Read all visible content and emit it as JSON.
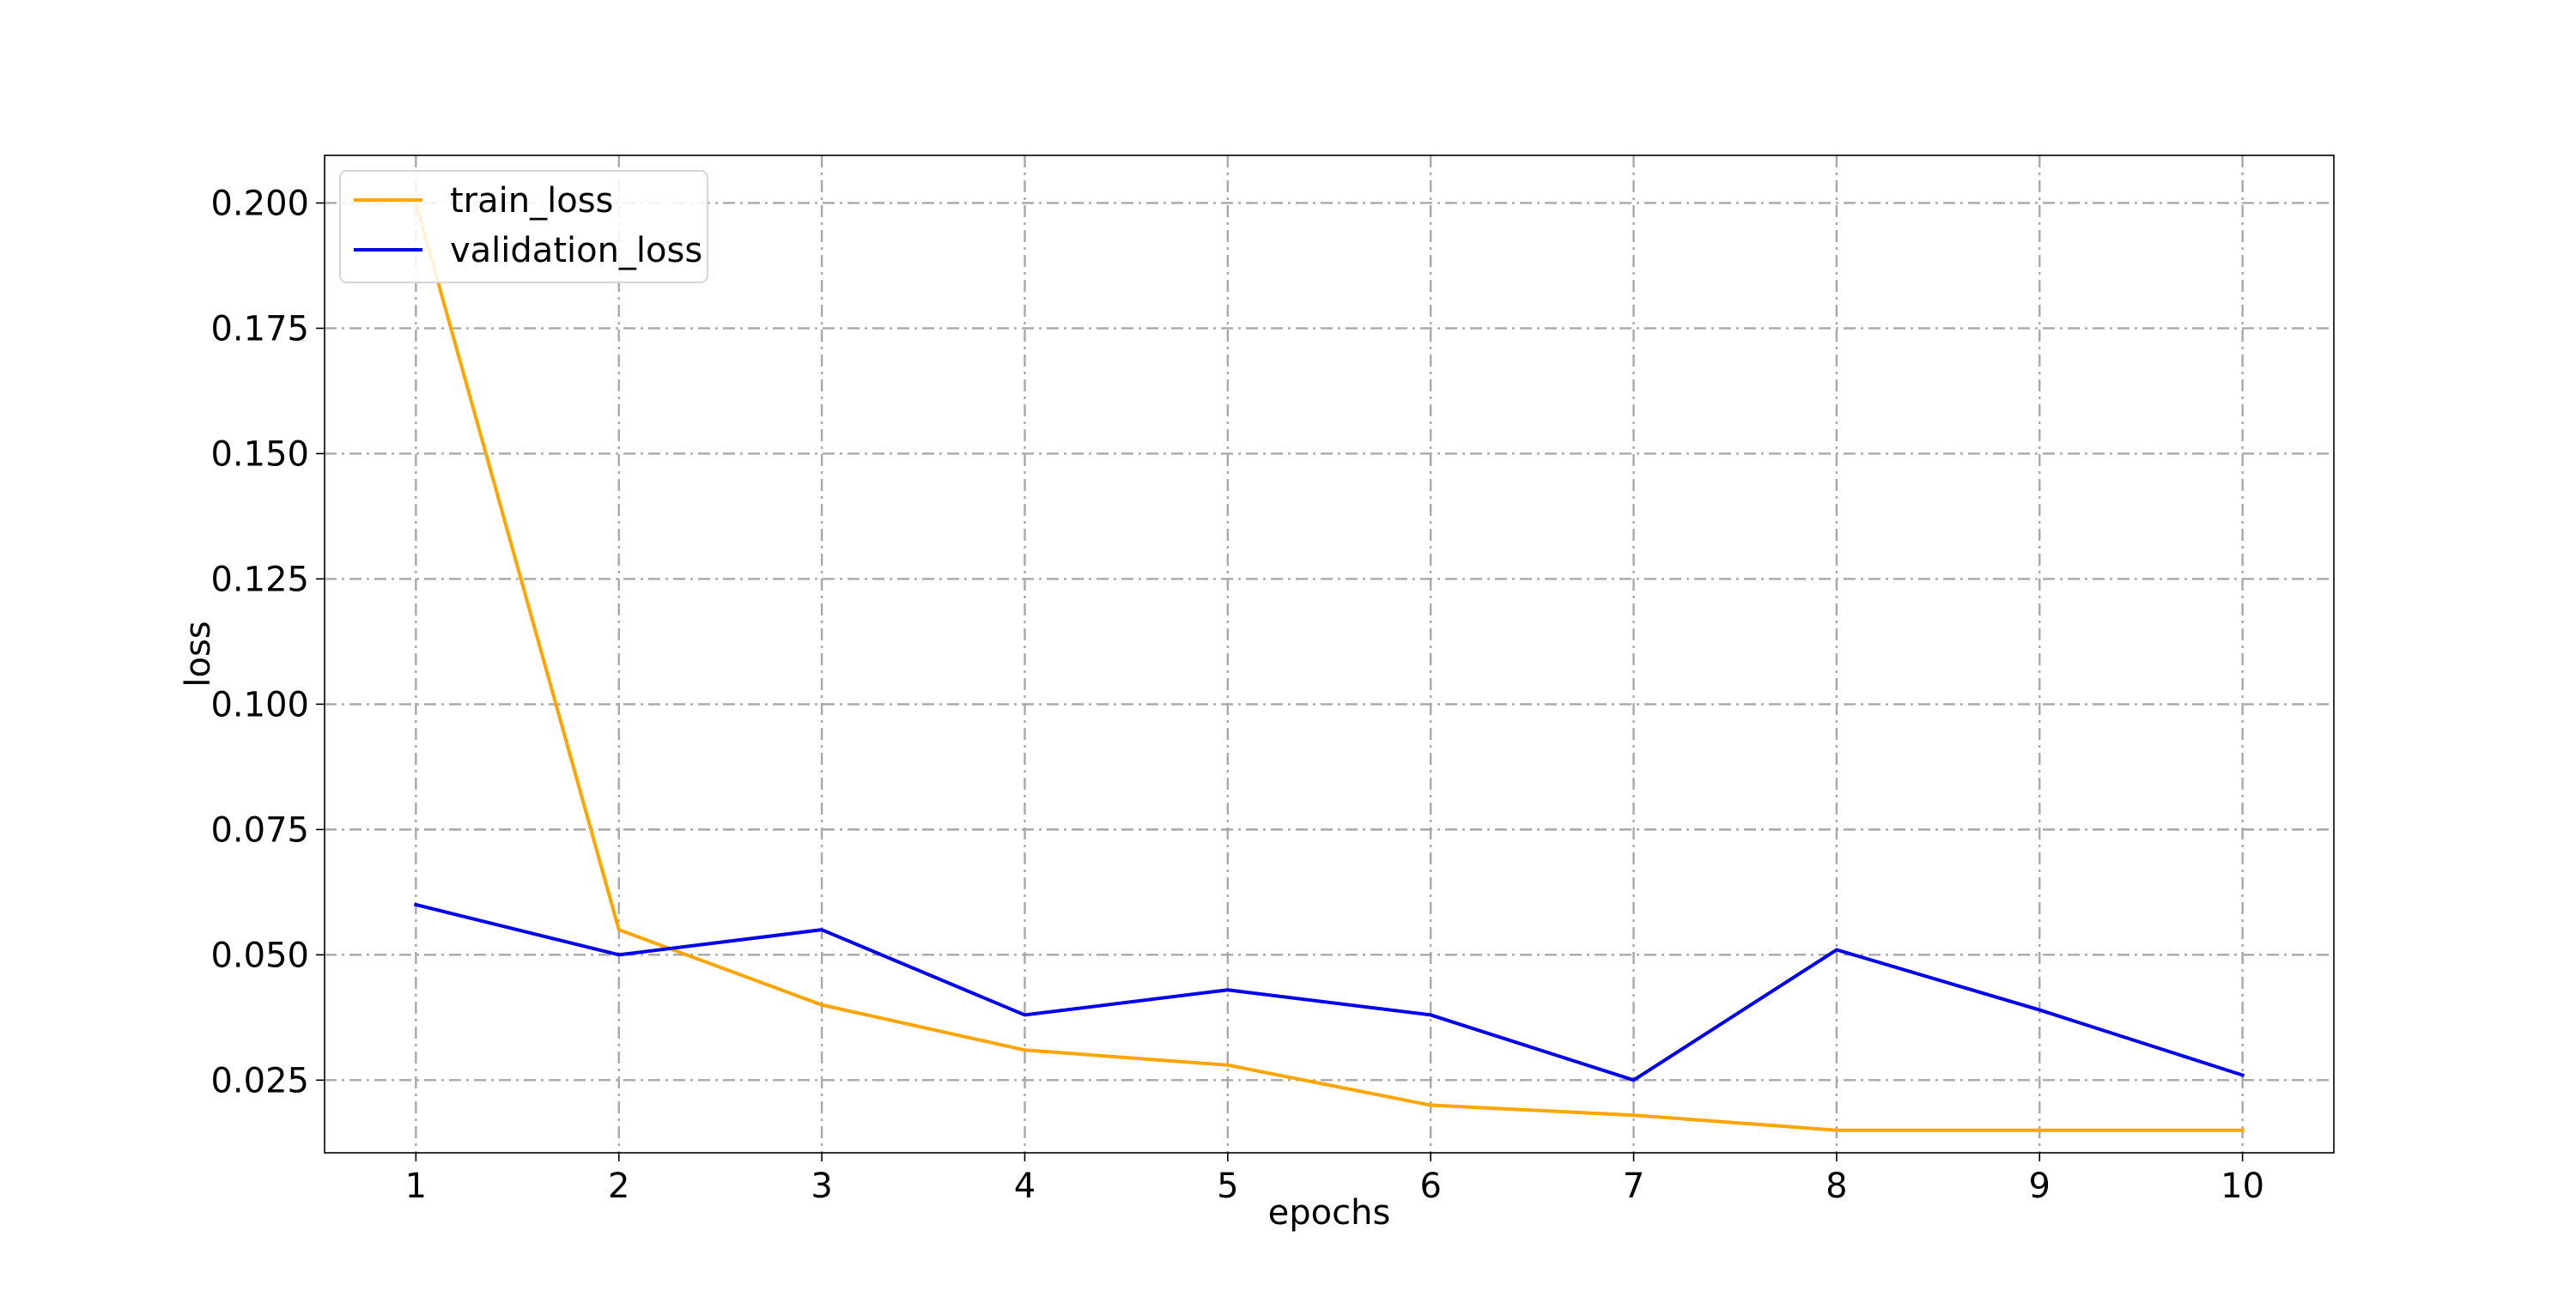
{
  "chart_data": {
    "type": "line",
    "title": "",
    "xlabel": "epochs",
    "ylabel": "loss",
    "x": [
      1,
      2,
      3,
      4,
      5,
      6,
      7,
      8,
      9,
      10
    ],
    "xlim": [
      0.55,
      10.45
    ],
    "ylim": [
      0.0105,
      0.2095
    ],
    "xticks": [
      1,
      2,
      3,
      4,
      5,
      6,
      7,
      8,
      9,
      10
    ],
    "xtick_labels": [
      "1",
      "2",
      "3",
      "4",
      "5",
      "6",
      "7",
      "8",
      "9",
      "10"
    ],
    "yticks": [
      0.025,
      0.05,
      0.075,
      0.1,
      0.125,
      0.15,
      0.175,
      0.2
    ],
    "ytick_labels": [
      "0.025",
      "0.050",
      "0.075",
      "0.100",
      "0.125",
      "0.150",
      "0.175",
      "0.200"
    ],
    "grid": true,
    "grid_style": "dash-dot",
    "legend_position": "upper-left",
    "series": [
      {
        "name": "train_loss",
        "color": "#ffa500",
        "values": [
          0.2,
          0.055,
          0.04,
          0.031,
          0.028,
          0.02,
          0.018,
          0.015,
          0.015,
          0.015
        ]
      },
      {
        "name": "validation_loss",
        "color": "#0000ee",
        "values": [
          0.06,
          0.05,
          0.055,
          0.038,
          0.043,
          0.038,
          0.025,
          0.051,
          0.039,
          0.026
        ]
      }
    ]
  }
}
